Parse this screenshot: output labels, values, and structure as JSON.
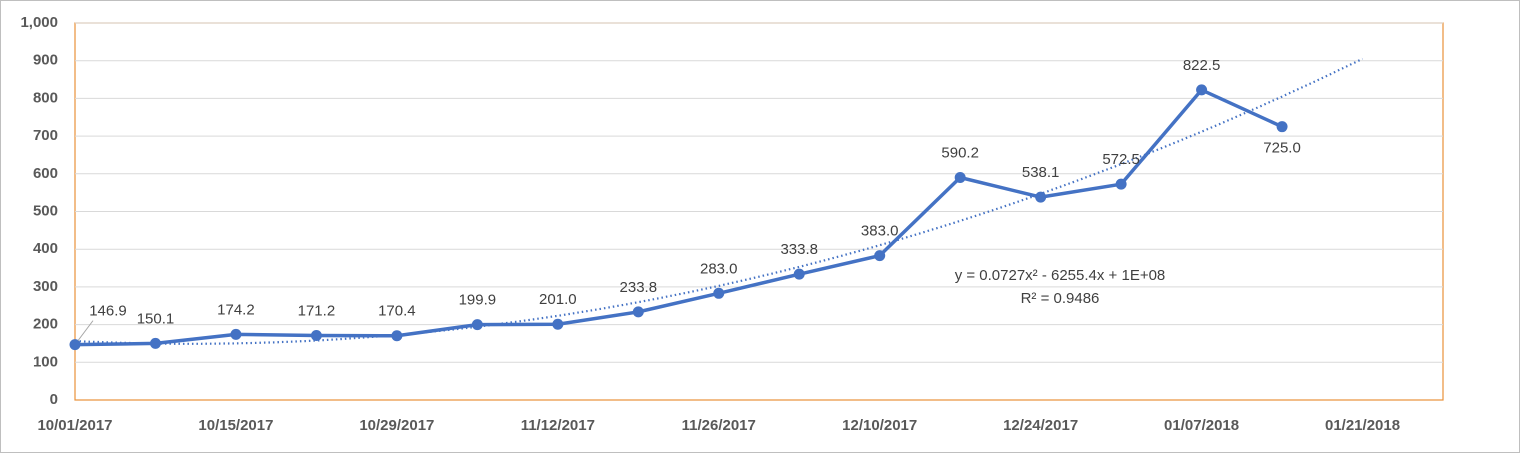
{
  "chart_data": {
    "type": "line",
    "x": [
      "10/01/2017",
      "10/08/2017",
      "10/15/2017",
      "10/22/2017",
      "10/29/2017",
      "11/05/2017",
      "11/12/2017",
      "11/19/2017",
      "11/26/2017",
      "12/03/2017",
      "12/10/2017",
      "12/17/2017",
      "12/24/2017",
      "12/31/2017",
      "01/07/2018",
      "01/14/2018"
    ],
    "series": [
      {
        "color": "#4472c4",
        "values": [
          146.9,
          150.1,
          174.2,
          171.2,
          170.4,
          199.9,
          201.0,
          233.8,
          283.0,
          333.8,
          383.0,
          590.2,
          538.1,
          572.5,
          822.5,
          725.0
        ],
        "value_labels": [
          "146.9",
          "150.1",
          "174.2",
          "171.2",
          "170.4",
          "199.9",
          "201.0",
          "233.8",
          "283.0",
          "333.8",
          "383.0",
          "590.2",
          "538.1",
          "572.5",
          "822.5",
          "725.0"
        ]
      }
    ],
    "xlim": [
      "10/01/2017",
      "01/28/2018"
    ],
    "xticks": [
      "10/01/2017",
      "10/15/2017",
      "10/29/2017",
      "11/12/2017",
      "11/26/2017",
      "12/10/2017",
      "12/24/2017",
      "01/07/2018",
      "01/21/2018"
    ],
    "ylim": [
      0,
      1000
    ],
    "yticks": [
      0,
      100,
      200,
      300,
      400,
      500,
      600,
      700,
      800,
      900,
      {
        "value": 1000,
        "label": "1,000"
      }
    ],
    "grid": true,
    "trendline": {
      "order": 2,
      "forecast_end": "01/21/2018",
      "color": "#4472c4",
      "equation": "y = 0.0727x² - 6255.4x + 1E+08",
      "r_squared": "R² = 0.9486"
    }
  }
}
